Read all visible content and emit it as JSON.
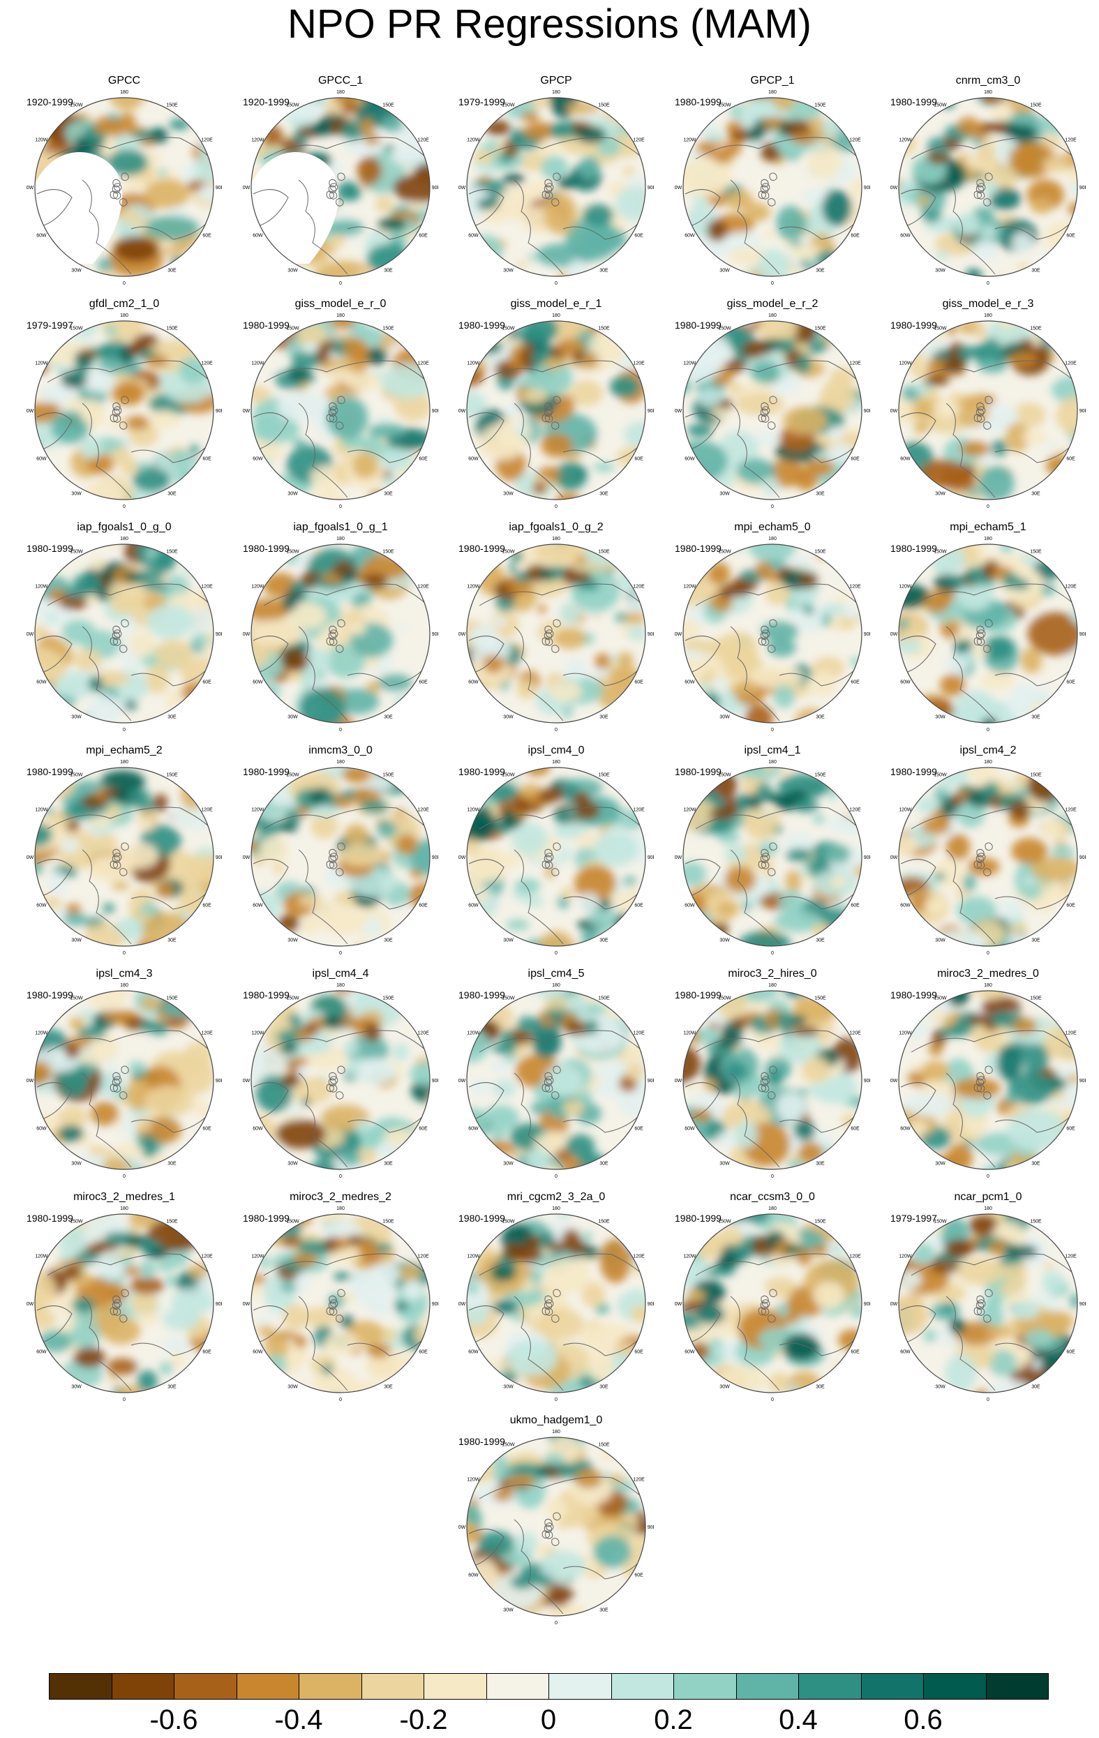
{
  "title": "NPO PR Regressions (MAM)",
  "colorbar": {
    "colors": [
      "#543005",
      "#7f4308",
      "#a86118",
      "#c8862f",
      "#dcb365",
      "#ecd59e",
      "#f6e9c6",
      "#f5f2e8",
      "#e3f1ef",
      "#c2e7e0",
      "#91d2c5",
      "#5fb3a7",
      "#2e8f83",
      "#117369",
      "#015b4e",
      "#003c30"
    ],
    "tick_labels": [
      "-0.6",
      "-0.4",
      "-0.2",
      "0",
      "0.2",
      "0.4",
      "0.6"
    ],
    "tick_values": [
      -0.6,
      -0.4,
      -0.2,
      0,
      0.2,
      0.4,
      0.6
    ],
    "levels": [
      -0.7,
      -0.6,
      -0.5,
      -0.4,
      -0.3,
      -0.2,
      -0.1,
      0,
      0.1,
      0.2,
      0.3,
      0.4,
      0.5,
      0.6,
      0.7
    ]
  },
  "map_labels": {
    "top": "180",
    "top_left": "150W",
    "top_right": "150E",
    "upper_left": "120W",
    "upper_right": "120E",
    "left": "90W",
    "right": "90E",
    "lower_left": "60W",
    "lower_right": "60E",
    "bottom_left": "30W",
    "bottom_right": "30E",
    "bottom": "0"
  },
  "panels": [
    {
      "name": "GPCC",
      "years": "1920-1999"
    },
    {
      "name": "GPCC_1",
      "years": "1920-1999"
    },
    {
      "name": "GPCP",
      "years": "1979-1999"
    },
    {
      "name": "GPCP_1",
      "years": "1980-1999"
    },
    {
      "name": "cnrm_cm3_0",
      "years": "1980-1999"
    },
    {
      "name": "gfdl_cm2_1_0",
      "years": "1979-1997"
    },
    {
      "name": "giss_model_e_r_0",
      "years": "1980-1999"
    },
    {
      "name": "giss_model_e_r_1",
      "years": "1980-1999"
    },
    {
      "name": "giss_model_e_r_2",
      "years": "1980-1999"
    },
    {
      "name": "giss_model_e_r_3",
      "years": "1980-1999"
    },
    {
      "name": "iap_fgoals1_0_g_0",
      "years": "1980-1999"
    },
    {
      "name": "iap_fgoals1_0_g_1",
      "years": "1980-1999"
    },
    {
      "name": "iap_fgoals1_0_g_2",
      "years": "1980-1999"
    },
    {
      "name": "mpi_echam5_0",
      "years": "1980-1999"
    },
    {
      "name": "mpi_echam5_1",
      "years": "1980-1999"
    },
    {
      "name": "mpi_echam5_2",
      "years": "1980-1999"
    },
    {
      "name": "inmcm3_0_0",
      "years": "1980-1999"
    },
    {
      "name": "ipsl_cm4_0",
      "years": "1980-1999"
    },
    {
      "name": "ipsl_cm4_1",
      "years": "1980-1999"
    },
    {
      "name": "ipsl_cm4_2",
      "years": "1980-1999"
    },
    {
      "name": "ipsl_cm4_3",
      "years": "1980-1999"
    },
    {
      "name": "ipsl_cm4_4",
      "years": "1980-1999"
    },
    {
      "name": "ipsl_cm4_5",
      "years": "1980-1999"
    },
    {
      "name": "miroc3_2_hires_0",
      "years": "1980-1999"
    },
    {
      "name": "miroc3_2_medres_0",
      "years": "1980-1999"
    },
    {
      "name": "miroc3_2_medres_1",
      "years": "1980-1999"
    },
    {
      "name": "miroc3_2_medres_2",
      "years": "1980-1999"
    },
    {
      "name": "mri_cgcm2_3_2a_0",
      "years": "1980-1999"
    },
    {
      "name": "ncar_ccsm3_0_0",
      "years": "1980-1999"
    },
    {
      "name": "ncar_pcm1_0",
      "years": "1979-1997"
    },
    {
      "name": "ukmo_hadgem1_0",
      "years": "1980-1999"
    }
  ]
}
